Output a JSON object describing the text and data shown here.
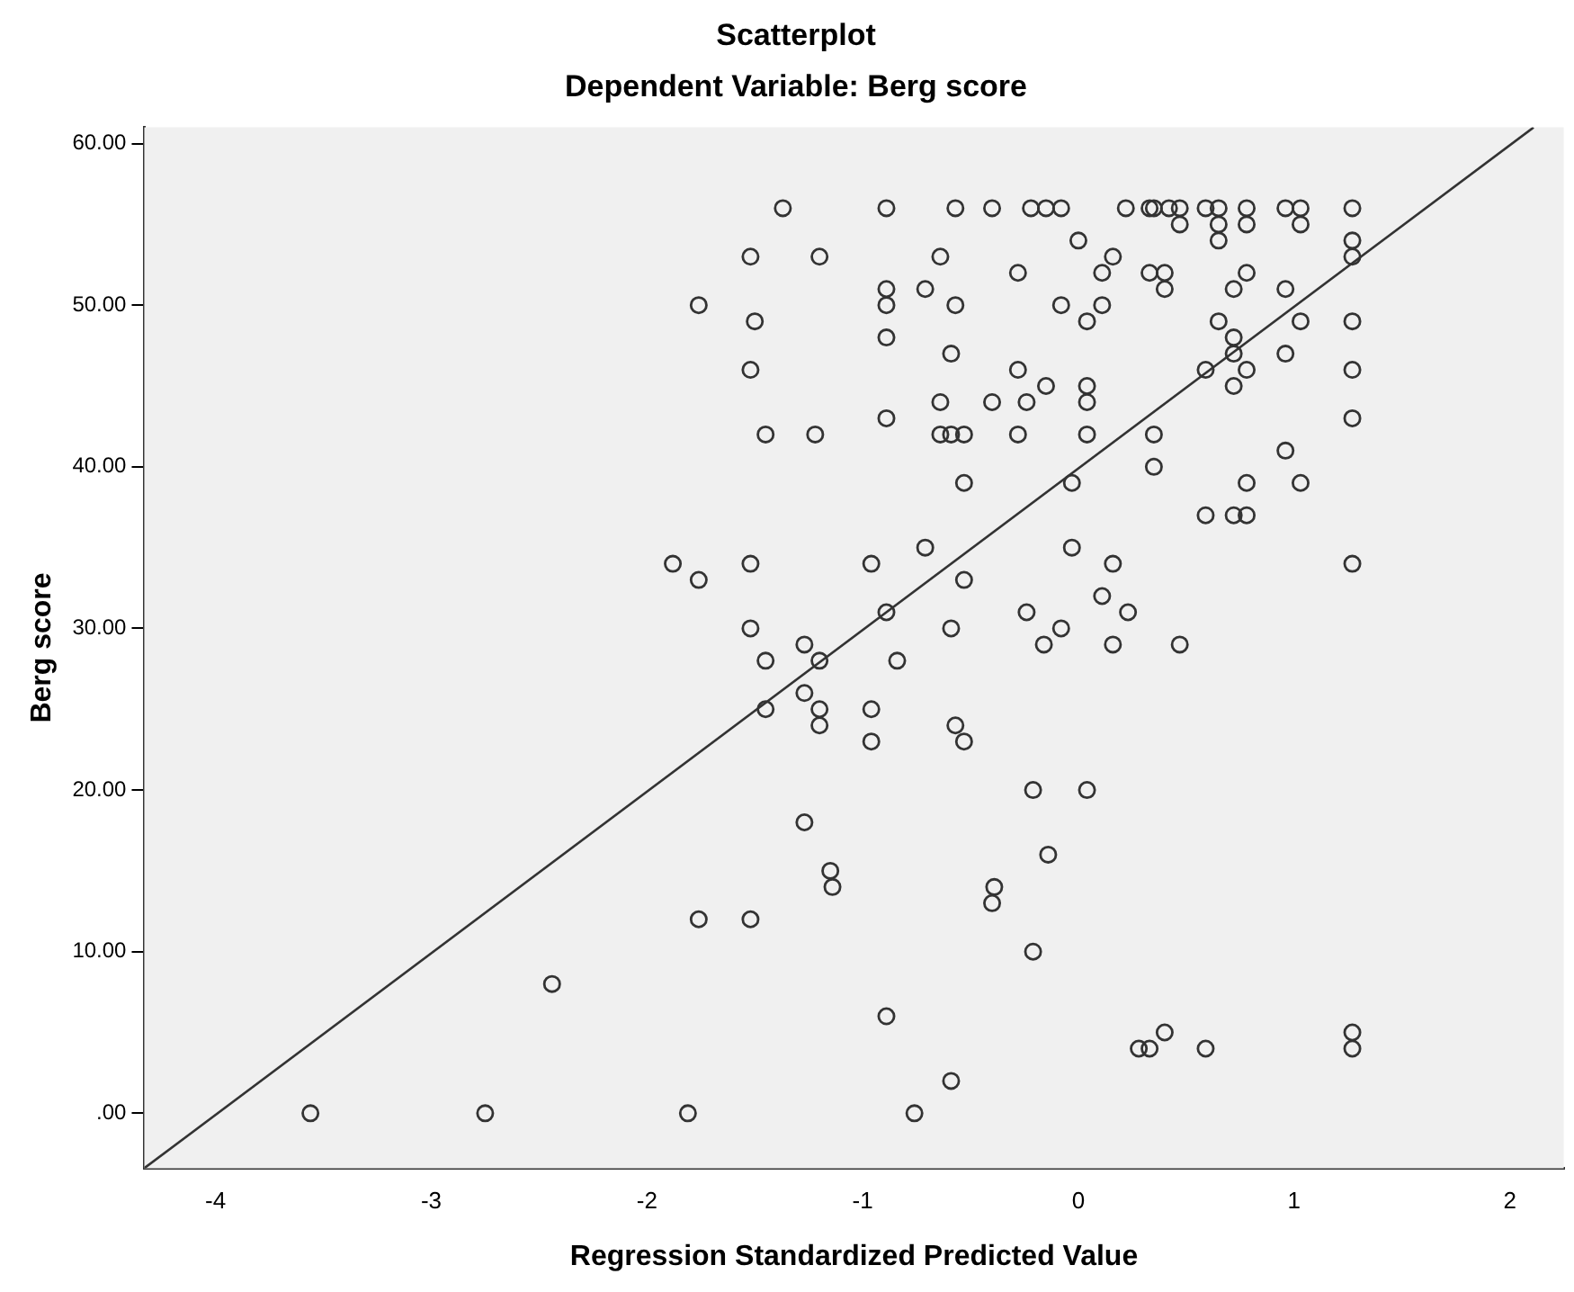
{
  "chart_data": {
    "type": "scatter",
    "title": "Scatterplot",
    "subtitle": "Dependent Variable: Berg score",
    "xlabel": "Regression Standardized Predicted Value",
    "ylabel": "Berg score",
    "xlim": [
      -4.33,
      2.25
    ],
    "ylim": [
      -3.4,
      61
    ],
    "xticks": [
      -4,
      -3,
      -2,
      -1,
      0,
      1,
      2
    ],
    "yticks": [
      {
        "value": 0,
        "label": ".00"
      },
      {
        "value": 10,
        "label": "10.00"
      },
      {
        "value": 20,
        "label": "20.00"
      },
      {
        "value": 30,
        "label": "30.00"
      },
      {
        "value": 40,
        "label": "40.00"
      },
      {
        "value": 50,
        "label": "50.00"
      },
      {
        "value": 60,
        "label": "60.00"
      }
    ],
    "grid": false,
    "legend": false,
    "series": [
      {
        "marker": "circle",
        "color": "#333333",
        "x": [
          -1.37,
          -0.89,
          -0.57,
          -0.4,
          -0.22,
          -0.15,
          -0.08,
          0.22,
          0.33,
          0.35,
          0.42,
          0.47,
          0.59,
          0.65,
          0.78,
          0.96,
          1.03,
          1.27,
          0.47,
          0.65,
          0.78,
          1.03,
          0.0,
          0.65,
          1.27,
          -1.52,
          -1.2,
          -0.64,
          0.16,
          1.27,
          -0.28,
          0.11,
          0.33,
          0.4,
          0.78,
          -0.89,
          -0.71,
          0.4,
          0.72,
          0.96,
          -1.76,
          -0.89,
          -0.57,
          -0.08,
          0.11,
          -1.5,
          0.04,
          0.65,
          1.03,
          1.27,
          -0.89,
          0.72,
          -0.59,
          0.72,
          0.96,
          -1.52,
          -0.28,
          0.59,
          0.78,
          1.27,
          -0.15,
          0.04,
          0.72,
          -0.64,
          -0.4,
          -0.24,
          0.04,
          -0.89,
          1.27,
          -1.45,
          -1.22,
          -0.64,
          -0.59,
          -0.53,
          -0.28,
          0.04,
          0.35,
          0.96,
          0.35,
          -0.53,
          -0.03,
          0.78,
          1.03,
          0.59,
          0.72,
          0.78,
          -0.71,
          -0.03,
          -1.88,
          -1.52,
          -0.96,
          0.16,
          1.27,
          -1.76,
          -0.53,
          0.11,
          -0.89,
          -0.24,
          0.23,
          -1.52,
          -0.59,
          -0.08,
          -1.27,
          -0.16,
          0.16,
          0.47,
          -1.45,
          -1.2,
          -0.84,
          -1.27,
          -1.45,
          -1.2,
          -0.96,
          -1.2,
          -0.57,
          -0.96,
          -0.53,
          -0.21,
          0.04,
          -1.27,
          -0.14,
          -1.15,
          -1.14,
          -0.39,
          -0.4,
          -0.21,
          -0.89,
          -2.44,
          -1.76,
          -1.52,
          -0.59,
          -3.56,
          -2.75,
          -1.81,
          -0.76,
          0.28,
          0.33,
          0.4,
          0.59,
          1.27,
          1.27
        ],
        "values": [
          56,
          56,
          56,
          56,
          56,
          56,
          56,
          56,
          56,
          56,
          56,
          56,
          56,
          56,
          56,
          56,
          56,
          56,
          55,
          55,
          55,
          55,
          54,
          54,
          54,
          53,
          53,
          53,
          53,
          53,
          52,
          52,
          52,
          52,
          52,
          51,
          51,
          51,
          51,
          51,
          50,
          50,
          50,
          50,
          50,
          49,
          49,
          49,
          49,
          49,
          48,
          48,
          47,
          47,
          47,
          46,
          46,
          46,
          46,
          46,
          45,
          45,
          45,
          44,
          44,
          44,
          44,
          43,
          43,
          42,
          42,
          42,
          42,
          42,
          42,
          42,
          42,
          41,
          40,
          39,
          39,
          39,
          39,
          37,
          37,
          37,
          35,
          35,
          34,
          34,
          34,
          34,
          34,
          33,
          33,
          32,
          31,
          31,
          31,
          30,
          30,
          30,
          29,
          29,
          29,
          29,
          28,
          28,
          28,
          26,
          25,
          25,
          25,
          24,
          24,
          23,
          23,
          20,
          20,
          18,
          16,
          15,
          14,
          14,
          13,
          10,
          6,
          8,
          12,
          12,
          2,
          0,
          0,
          0,
          0,
          4,
          4,
          5,
          4,
          5,
          4
        ]
      },
      {
        "type": "line",
        "marker": "none",
        "color": "#333333",
        "x": [
          -4.33,
          2.11
        ],
        "values": [
          -3.4,
          61
        ]
      }
    ]
  }
}
